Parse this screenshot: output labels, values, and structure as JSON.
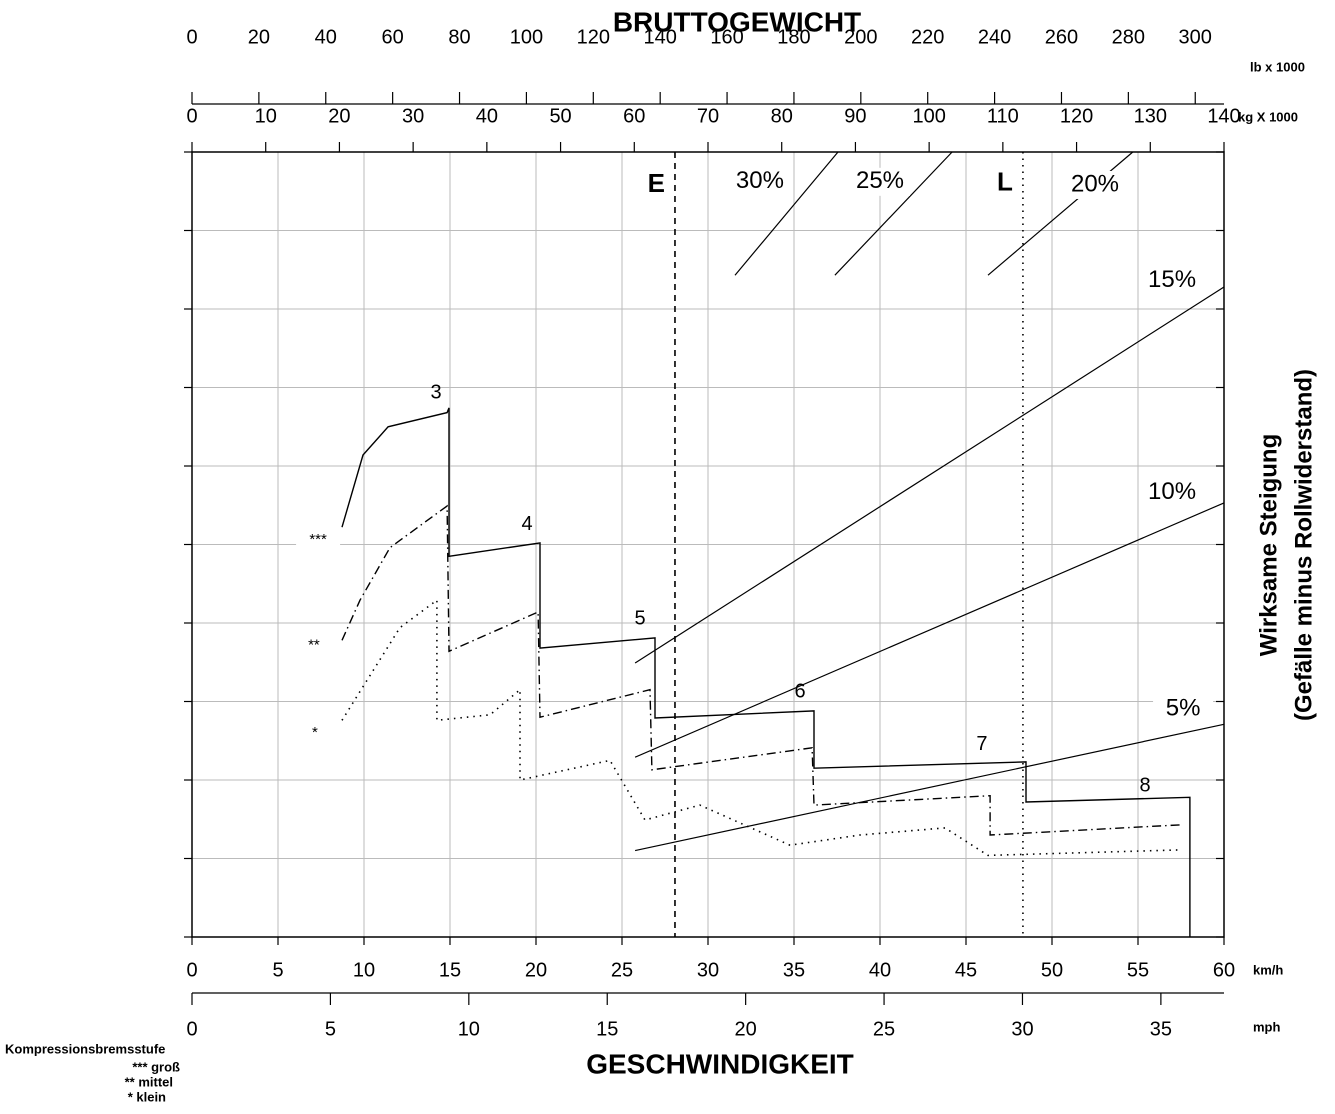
{
  "chart_data": {
    "type": "line",
    "title": "BRUTTOGEWICHT",
    "x_label": "GESCHWINDIGKEIT",
    "y_label": [
      "Wirksame Steigung",
      "(Gefälle minus Rollwiderstand)"
    ],
    "xlim": [
      0,
      60
    ],
    "xticks": [
      0,
      5,
      10,
      15,
      20,
      25,
      30,
      35,
      40,
      45,
      50,
      55,
      60
    ],
    "x_unit": "km/h",
    "mph_axis": {
      "unit": "mph",
      "lim": [
        0,
        37.28
      ],
      "ticks": [
        0,
        5,
        10,
        15,
        20,
        25,
        30,
        35
      ]
    },
    "kg_axis": {
      "unit": "kg X 1000",
      "lim": [
        0,
        140
      ],
      "ticks": [
        0,
        10,
        20,
        30,
        40,
        50,
        60,
        70,
        80,
        90,
        100,
        110,
        120,
        130,
        140
      ]
    },
    "lb_axis": {
      "unit": "lb x 1000",
      "lim": [
        0,
        308.6
      ],
      "ticks": [
        0,
        20,
        40,
        60,
        80,
        100,
        120,
        140,
        160,
        180,
        200,
        220,
        240,
        260,
        280,
        300
      ]
    },
    "ylim": [
      0,
      10
    ],
    "yticks": [
      0,
      1,
      2,
      3,
      4,
      5,
      6,
      7,
      8,
      9,
      10
    ],
    "grid": true,
    "series": [
      {
        "name": "***",
        "style": "solid",
        "color": "#000000",
        "x": [
          8.72,
          9.94,
          11.4,
          14.83,
          14.94,
          14.94,
          20.23,
          20.23,
          26.92,
          26.92,
          36.16,
          36.16,
          48.49,
          48.49,
          58.02,
          58.02
        ],
        "values": [
          5.22,
          6.14,
          6.5,
          6.68,
          6.74,
          4.85,
          5.02,
          3.68,
          3.81,
          2.79,
          2.88,
          2.15,
          2.23,
          1.72,
          1.78,
          0
        ],
        "label_x": 7.33,
        "label_y": 5.06
      },
      {
        "name": "**",
        "style": "dashdot",
        "color": "#000000",
        "x": [
          8.72,
          9.77,
          11.51,
          14.83,
          14.94,
          20.12,
          20.23,
          26.63,
          26.74,
          36.05,
          36.16,
          46.4,
          46.4,
          57.62
        ],
        "values": [
          3.78,
          4.29,
          4.96,
          5.49,
          3.64,
          4.14,
          2.8,
          3.15,
          2.13,
          2.41,
          1.68,
          1.8,
          1.3,
          1.43
        ],
        "label_x": 7.09,
        "label_y": 3.71
      },
      {
        "name": "*",
        "style": "dotted",
        "color": "#000000",
        "x": [
          8.72,
          12.09,
          14.24,
          14.24,
          17.33,
          19.07,
          19.07,
          24.3,
          26.34,
          29.53,
          34.77,
          38.84,
          43.78,
          46.28,
          57.44
        ],
        "values": [
          2.76,
          3.94,
          4.29,
          2.76,
          2.83,
          3.15,
          2.0,
          2.25,
          1.49,
          1.68,
          1.17,
          1.3,
          1.39,
          1.04,
          1.11
        ],
        "label_x": 7.15,
        "label_y": 2.6
      }
    ],
    "grade_lines": [
      {
        "name": "30%",
        "x": [
          31.57,
          37.56
        ],
        "values": [
          8.43,
          10
        ],
        "label_x": 33.02,
        "label_y": 9.62
      },
      {
        "name": "25%",
        "x": [
          37.38,
          44.19
        ],
        "values": [
          8.43,
          10
        ],
        "label_x": 40.0,
        "label_y": 9.62
      },
      {
        "name": "20%",
        "x": [
          46.28,
          54.7
        ],
        "values": [
          8.43,
          10
        ],
        "label_x": 52.5,
        "label_y": 9.58
      },
      {
        "name": "15%",
        "x": [
          25.76,
          60
        ],
        "values": [
          3.49,
          8.28
        ],
        "label_x": 56.98,
        "label_y": 8.36
      },
      {
        "name": "10%",
        "x": [
          25.76,
          60
        ],
        "values": [
          2.29,
          5.53
        ],
        "label_x": 56.98,
        "label_y": 5.66
      },
      {
        "name": "5%",
        "x": [
          25.76,
          60
        ],
        "values": [
          1.1,
          2.71
        ],
        "label_x": 57.62,
        "label_y": 2.9
      }
    ],
    "reference_lines": [
      {
        "label": "E",
        "x": 28.08,
        "style": "dashed",
        "label_y": 9.58
      },
      {
        "label": "L",
        "x": 48.31,
        "style": "dotted",
        "label_y": 9.6
      }
    ],
    "gear_labels": [
      {
        "text": "3",
        "x": 14.19,
        "y": 6.93
      },
      {
        "text": "4",
        "x": 19.48,
        "y": 5.25
      },
      {
        "text": "5",
        "x": 26.05,
        "y": 4.05
      },
      {
        "text": "6",
        "x": 35.35,
        "y": 3.12
      },
      {
        "text": "7",
        "x": 45.93,
        "y": 2.45
      },
      {
        "text": "8",
        "x": 55.41,
        "y": 1.92
      }
    ],
    "legend": {
      "title": "Kompressionsbremsstufe",
      "items": [
        "*** groß",
        "** mittel",
        "* klein"
      ]
    }
  }
}
